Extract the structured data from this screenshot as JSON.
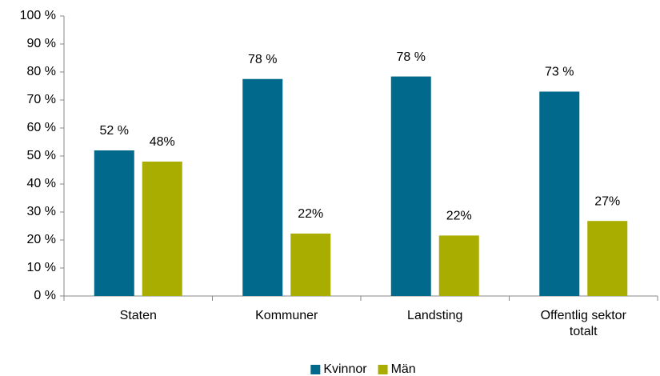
{
  "chart_data": {
    "type": "bar",
    "categories": [
      "Staten",
      "Kommuner",
      "Landsting",
      "Offentlig sektor totalt"
    ],
    "series": [
      {
        "name": "Kvinnor",
        "color": "#00698c",
        "values": [
          52,
          77.5,
          78.4,
          73
        ],
        "value_labels": [
          "52 %",
          "78 %",
          "78 %",
          "73 %"
        ]
      },
      {
        "name": "Män",
        "color": "#a8ad00",
        "values": [
          48,
          22.3,
          21.6,
          26.8
        ],
        "value_labels": [
          "48%",
          "22%",
          "22%",
          "27%"
        ]
      }
    ],
    "ylim": [
      0,
      100
    ],
    "yticks": [
      {
        "value": 0,
        "label": "0 %"
      },
      {
        "value": 10,
        "label": "10 %"
      },
      {
        "value": 20,
        "label": "20 %"
      },
      {
        "value": 30,
        "label": "30 %"
      },
      {
        "value": 40,
        "label": "40 %"
      },
      {
        "value": 50,
        "label": "50 %"
      },
      {
        "value": 60,
        "label": "60 %"
      },
      {
        "value": 70,
        "label": "70 %"
      },
      {
        "value": 80,
        "label": "80 %"
      },
      {
        "value": 90,
        "label": "90 %"
      },
      {
        "value": 100,
        "label": "100 %"
      }
    ],
    "legend": "bottom"
  }
}
